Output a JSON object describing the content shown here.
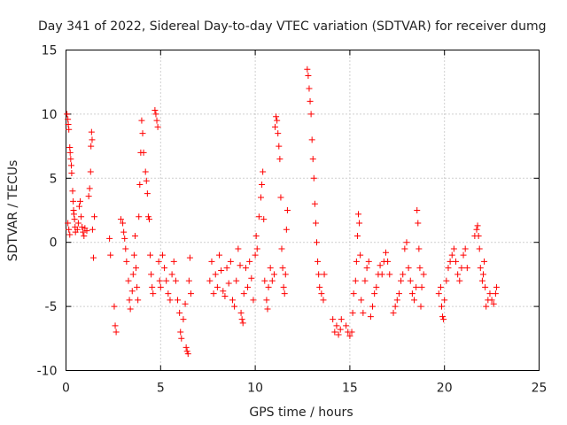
{
  "chart_data": {
    "type": "scatter",
    "title": "Day 341 of 2022, Sidereal Day-to-day VTEC variation (SDTVAR) for receiver dumg",
    "xlabel": "GPS time / hours",
    "ylabel": "SDTVAR / TECUs",
    "xlim": [
      0,
      25
    ],
    "ylim": [
      -10,
      15
    ],
    "xticks": [
      0,
      5,
      10,
      15,
      20,
      25
    ],
    "yticks": [
      -10,
      -5,
      0,
      5,
      10,
      15
    ],
    "xtick_labels": [
      "0",
      "5",
      "10",
      "15",
      "20",
      "25"
    ],
    "ytick_labels": [
      "-10",
      "-5",
      "0",
      "5",
      "10",
      "15"
    ],
    "grid": true,
    "marker": "+",
    "color": "#ff0000",
    "series": [
      {
        "name": "SDTVAR",
        "points": [
          [
            0.05,
            10.0
          ],
          [
            0.1,
            9.6
          ],
          [
            0.12,
            9.2
          ],
          [
            0.15,
            8.8
          ],
          [
            0.2,
            7.4
          ],
          [
            0.22,
            7.0
          ],
          [
            0.25,
            6.5
          ],
          [
            0.28,
            6.0
          ],
          [
            0.3,
            5.4
          ],
          [
            0.35,
            4.0
          ],
          [
            0.38,
            3.2
          ],
          [
            0.4,
            2.5
          ],
          [
            0.42,
            2.2
          ],
          [
            0.45,
            1.8
          ],
          [
            0.48,
            1.2
          ],
          [
            0.5,
            0.8
          ],
          [
            0.1,
            1.5
          ],
          [
            0.15,
            1.0
          ],
          [
            0.2,
            0.6
          ],
          [
            0.6,
            1.0
          ],
          [
            0.65,
            1.5
          ],
          [
            0.7,
            2.8
          ],
          [
            0.75,
            3.2
          ],
          [
            0.8,
            2.0
          ],
          [
            0.85,
            1.2
          ],
          [
            0.9,
            0.8
          ],
          [
            0.95,
            0.5
          ],
          [
            1.0,
            1.1
          ],
          [
            1.1,
            0.9
          ],
          [
            1.2,
            3.6
          ],
          [
            1.25,
            4.2
          ],
          [
            1.3,
            5.5
          ],
          [
            1.32,
            7.5
          ],
          [
            1.35,
            8.6
          ],
          [
            1.38,
            8.0
          ],
          [
            1.4,
            1.0
          ],
          [
            1.45,
            -1.2
          ],
          [
            1.5,
            2.0
          ],
          [
            2.3,
            0.3
          ],
          [
            2.35,
            -1.0
          ],
          [
            2.55,
            -5.0
          ],
          [
            2.6,
            -6.5
          ],
          [
            2.65,
            -7.0
          ],
          [
            2.9,
            1.8
          ],
          [
            3.0,
            1.5
          ],
          [
            3.05,
            0.8
          ],
          [
            3.1,
            0.3
          ],
          [
            3.15,
            -0.5
          ],
          [
            3.2,
            -1.5
          ],
          [
            3.3,
            -3.0
          ],
          [
            3.35,
            -4.5
          ],
          [
            3.4,
            -5.2
          ],
          [
            3.5,
            -3.8
          ],
          [
            3.55,
            -2.5
          ],
          [
            3.6,
            -1.0
          ],
          [
            3.65,
            0.5
          ],
          [
            3.7,
            -2.0
          ],
          [
            3.75,
            -3.5
          ],
          [
            3.8,
            -4.5
          ],
          [
            3.85,
            2.0
          ],
          [
            3.9,
            4.5
          ],
          [
            3.95,
            7.0
          ],
          [
            4.0,
            9.5
          ],
          [
            4.05,
            8.5
          ],
          [
            4.1,
            7.0
          ],
          [
            4.2,
            5.5
          ],
          [
            4.25,
            4.8
          ],
          [
            4.3,
            3.8
          ],
          [
            4.35,
            2.0
          ],
          [
            4.4,
            1.8
          ],
          [
            4.45,
            -1.0
          ],
          [
            4.5,
            -2.5
          ],
          [
            4.55,
            -3.5
          ],
          [
            4.6,
            -4.0
          ],
          [
            4.7,
            10.3
          ],
          [
            4.75,
            10.0
          ],
          [
            4.8,
            9.5
          ],
          [
            4.85,
            9.0
          ],
          [
            4.9,
            -1.5
          ],
          [
            4.95,
            -3.0
          ],
          [
            5.0,
            -3.5
          ],
          [
            5.1,
            -1.0
          ],
          [
            5.2,
            -2.0
          ],
          [
            5.3,
            -3.0
          ],
          [
            5.4,
            -4.0
          ],
          [
            5.5,
            -4.5
          ],
          [
            5.6,
            -2.5
          ],
          [
            5.7,
            -1.5
          ],
          [
            5.8,
            -3.0
          ],
          [
            5.9,
            -4.5
          ],
          [
            6.0,
            -5.5
          ],
          [
            6.05,
            -7.0
          ],
          [
            6.1,
            -7.5
          ],
          [
            6.2,
            -6.0
          ],
          [
            6.3,
            -4.8
          ],
          [
            6.35,
            -8.2
          ],
          [
            6.4,
            -8.5
          ],
          [
            6.45,
            -8.7
          ],
          [
            6.5,
            -3.0
          ],
          [
            6.55,
            -1.2
          ],
          [
            6.6,
            -4.0
          ],
          [
            7.6,
            -3.0
          ],
          [
            7.7,
            -1.5
          ],
          [
            7.8,
            -4.0
          ],
          [
            7.9,
            -2.5
          ],
          [
            8.0,
            -3.5
          ],
          [
            8.1,
            -1.0
          ],
          [
            8.2,
            -2.2
          ],
          [
            8.3,
            -3.8
          ],
          [
            8.4,
            -4.2
          ],
          [
            8.5,
            -2.0
          ],
          [
            8.6,
            -3.2
          ],
          [
            8.7,
            -1.5
          ],
          [
            8.8,
            -4.5
          ],
          [
            8.9,
            -5.0
          ],
          [
            9.0,
            -3.0
          ],
          [
            9.1,
            -0.5
          ],
          [
            9.2,
            -1.8
          ],
          [
            9.25,
            -5.5
          ],
          [
            9.3,
            -6.0
          ],
          [
            9.35,
            -6.3
          ],
          [
            9.4,
            -4.0
          ],
          [
            9.5,
            -2.0
          ],
          [
            9.6,
            -3.5
          ],
          [
            9.7,
            -1.5
          ],
          [
            9.8,
            -2.8
          ],
          [
            9.9,
            -4.5
          ],
          [
            10.0,
            -1.0
          ],
          [
            10.05,
            0.5
          ],
          [
            10.1,
            -0.5
          ],
          [
            10.2,
            2.0
          ],
          [
            10.3,
            3.5
          ],
          [
            10.35,
            4.5
          ],
          [
            10.4,
            5.5
          ],
          [
            10.45,
            1.8
          ],
          [
            10.5,
            -3.0
          ],
          [
            10.6,
            -4.5
          ],
          [
            10.65,
            -5.2
          ],
          [
            10.7,
            -3.5
          ],
          [
            10.8,
            -2.0
          ],
          [
            10.9,
            -3.0
          ],
          [
            11.0,
            -2.5
          ],
          [
            11.05,
            9.0
          ],
          [
            11.1,
            9.8
          ],
          [
            11.15,
            9.5
          ],
          [
            11.2,
            8.5
          ],
          [
            11.25,
            7.5
          ],
          [
            11.3,
            6.5
          ],
          [
            11.35,
            3.5
          ],
          [
            11.4,
            -0.5
          ],
          [
            11.45,
            -2.0
          ],
          [
            11.5,
            -3.5
          ],
          [
            11.55,
            -4.0
          ],
          [
            11.6,
            -2.5
          ],
          [
            11.65,
            1.0
          ],
          [
            11.7,
            2.5
          ],
          [
            12.75,
            13.5
          ],
          [
            12.8,
            13.0
          ],
          [
            12.85,
            12.0
          ],
          [
            12.9,
            11.0
          ],
          [
            12.95,
            10.0
          ],
          [
            13.0,
            8.0
          ],
          [
            13.05,
            6.5
          ],
          [
            13.1,
            5.0
          ],
          [
            13.15,
            3.0
          ],
          [
            13.2,
            1.5
          ],
          [
            13.25,
            0.0
          ],
          [
            13.3,
            -1.5
          ],
          [
            13.35,
            -2.5
          ],
          [
            13.4,
            -3.5
          ],
          [
            13.5,
            -4.0
          ],
          [
            13.6,
            -4.5
          ],
          [
            13.65,
            -2.5
          ],
          [
            14.1,
            -6.0
          ],
          [
            14.2,
            -7.0
          ],
          [
            14.3,
            -6.5
          ],
          [
            14.4,
            -7.2
          ],
          [
            14.5,
            -6.8
          ],
          [
            14.55,
            -6.0
          ],
          [
            14.8,
            -6.5
          ],
          [
            14.9,
            -7.0
          ],
          [
            15.0,
            -7.3
          ],
          [
            15.1,
            -7.0
          ],
          [
            15.15,
            -5.5
          ],
          [
            15.2,
            -4.0
          ],
          [
            15.3,
            -3.0
          ],
          [
            15.35,
            -1.5
          ],
          [
            15.4,
            0.5
          ],
          [
            15.45,
            2.2
          ],
          [
            15.5,
            1.5
          ],
          [
            15.55,
            -1.0
          ],
          [
            15.6,
            -4.5
          ],
          [
            15.7,
            -5.5
          ],
          [
            15.8,
            -3.0
          ],
          [
            15.9,
            -2.0
          ],
          [
            16.0,
            -1.5
          ],
          [
            16.1,
            -5.8
          ],
          [
            16.2,
            -5.0
          ],
          [
            16.3,
            -4.0
          ],
          [
            16.4,
            -3.5
          ],
          [
            16.5,
            -2.5
          ],
          [
            16.6,
            -1.8
          ],
          [
            16.7,
            -2.5
          ],
          [
            16.8,
            -1.5
          ],
          [
            16.9,
            -0.8
          ],
          [
            17.0,
            -1.5
          ],
          [
            17.1,
            -2.5
          ],
          [
            17.3,
            -5.5
          ],
          [
            17.4,
            -5.0
          ],
          [
            17.5,
            -4.5
          ],
          [
            17.6,
            -4.0
          ],
          [
            17.7,
            -3.0
          ],
          [
            17.8,
            -2.5
          ],
          [
            17.9,
            -0.5
          ],
          [
            18.0,
            0.0
          ],
          [
            18.1,
            -2.0
          ],
          [
            18.2,
            -3.0
          ],
          [
            18.3,
            -4.0
          ],
          [
            18.4,
            -4.5
          ],
          [
            18.5,
            -3.5
          ],
          [
            18.55,
            2.5
          ],
          [
            18.6,
            1.5
          ],
          [
            18.65,
            -0.5
          ],
          [
            18.7,
            -2.0
          ],
          [
            18.75,
            -5.0
          ],
          [
            18.8,
            -3.5
          ],
          [
            18.9,
            -2.5
          ],
          [
            19.7,
            -4.0
          ],
          [
            19.8,
            -3.5
          ],
          [
            19.85,
            -5.0
          ],
          [
            19.9,
            -5.8
          ],
          [
            19.95,
            -6.0
          ],
          [
            20.0,
            -4.5
          ],
          [
            20.1,
            -3.0
          ],
          [
            20.2,
            -2.0
          ],
          [
            20.3,
            -1.5
          ],
          [
            20.4,
            -1.0
          ],
          [
            20.5,
            -0.5
          ],
          [
            20.6,
            -1.5
          ],
          [
            20.7,
            -2.5
          ],
          [
            20.8,
            -3.0
          ],
          [
            20.9,
            -2.0
          ],
          [
            21.0,
            -1.0
          ],
          [
            21.1,
            -0.5
          ],
          [
            21.2,
            -2.0
          ],
          [
            21.6,
            0.5
          ],
          [
            21.7,
            1.0
          ],
          [
            21.75,
            1.3
          ],
          [
            21.8,
            0.5
          ],
          [
            21.85,
            -0.5
          ],
          [
            21.9,
            -2.0
          ],
          [
            22.0,
            -3.0
          ],
          [
            22.05,
            -2.5
          ],
          [
            22.1,
            -1.5
          ],
          [
            22.15,
            -3.5
          ],
          [
            22.2,
            -5.0
          ],
          [
            22.3,
            -4.5
          ],
          [
            22.4,
            -4.0
          ],
          [
            22.5,
            -4.5
          ],
          [
            22.6,
            -4.8
          ],
          [
            22.7,
            -4.0
          ],
          [
            22.75,
            -3.5
          ]
        ]
      }
    ]
  }
}
